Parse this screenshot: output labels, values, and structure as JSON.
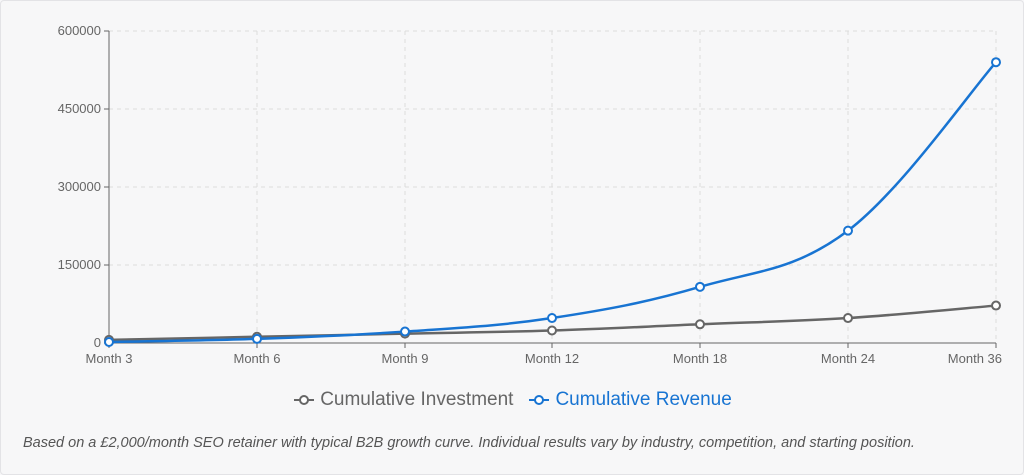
{
  "chart_data": {
    "type": "line",
    "categories": [
      "Month 3",
      "Month 6",
      "Month 9",
      "Month 12",
      "Month 18",
      "Month 24",
      "Month 36"
    ],
    "series": [
      {
        "name": "Cumulative Investment",
        "color": "#666666",
        "values": [
          6000,
          12000,
          18000,
          24000,
          36000,
          48000,
          72000
        ]
      },
      {
        "name": "Cumulative Revenue",
        "color": "#1874d2",
        "values": [
          2000,
          8000,
          22000,
          48000,
          108000,
          216000,
          540000
        ]
      }
    ],
    "y_ticks": [
      "600000",
      "450000",
      "300000",
      "150000",
      "0"
    ],
    "ylim": [
      0,
      600000
    ],
    "grid": true,
    "legend_position": "bottom"
  },
  "caption": "Based on a £2,000/month SEO retainer with typical B2B growth curve. Individual results vary by industry, competition, and starting position."
}
